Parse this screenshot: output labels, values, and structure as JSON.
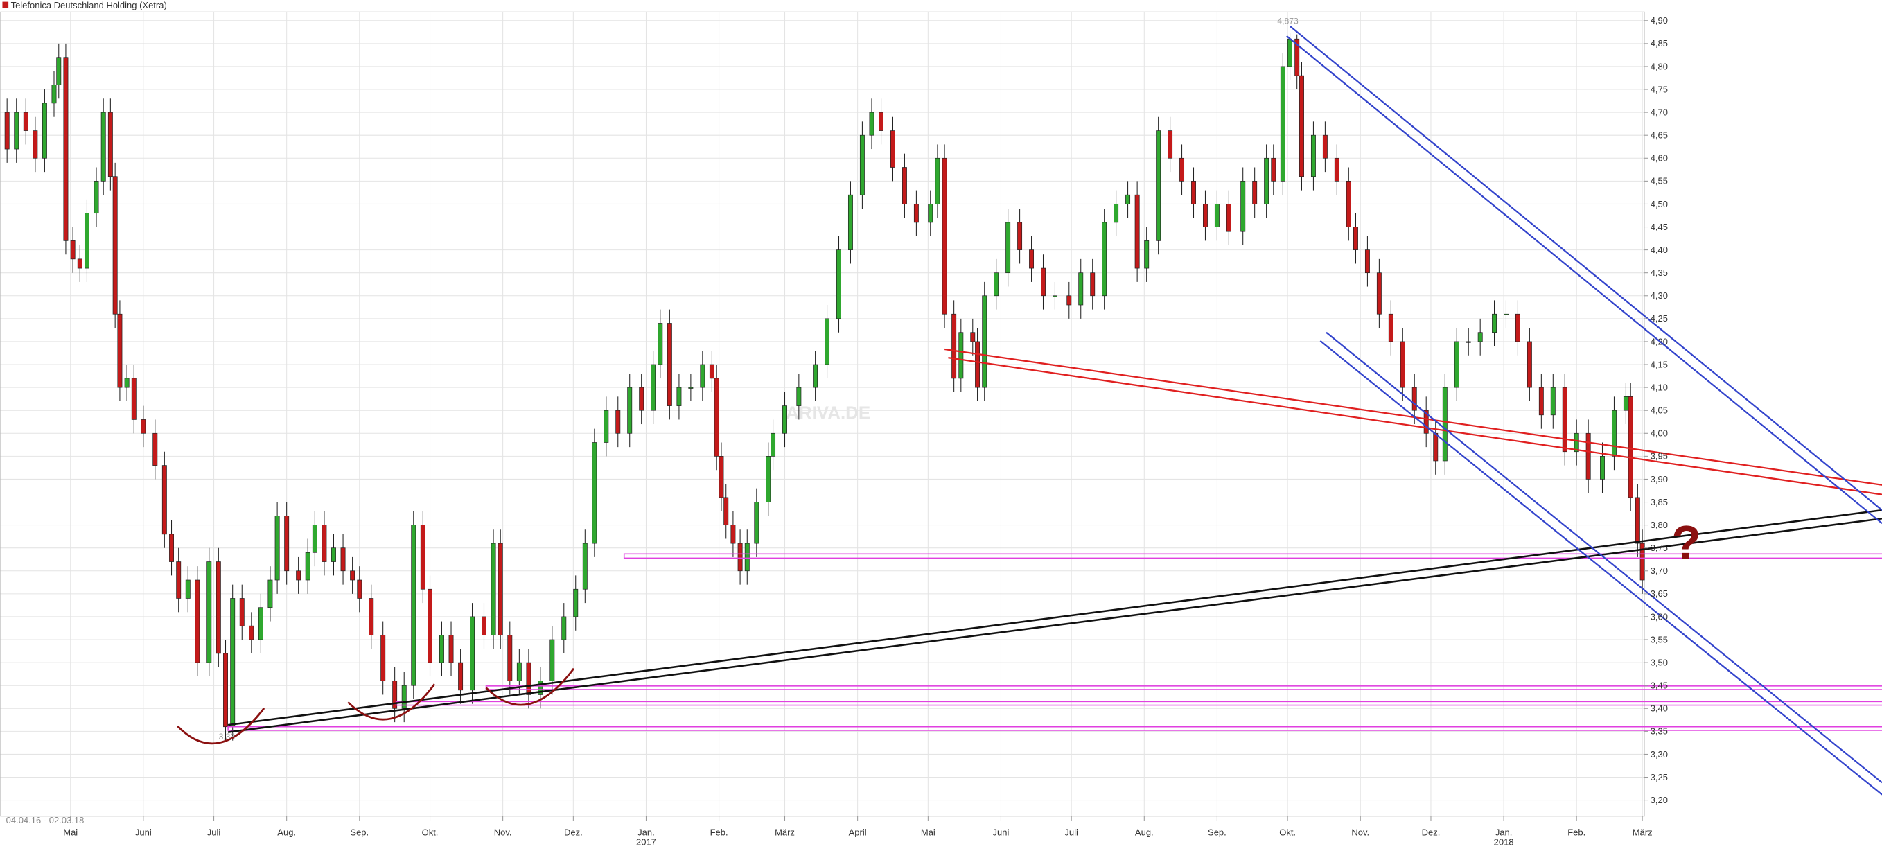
{
  "chart_data": {
    "type": "candlestick",
    "title": "Telefonica Deutschland Holding (Xetra)",
    "date_range": "04.04.16 - 02.03.18",
    "watermark": "ARIVA.DE",
    "annotations": [
      "4,873",
      "3,33",
      "?"
    ],
    "up_color": "#2fa82f",
    "down_color": "#c41a1a",
    "grid": true,
    "x": [
      0,
      4,
      8,
      12,
      16,
      20,
      22,
      25,
      28,
      31,
      34,
      38,
      41,
      44,
      46,
      48,
      51,
      54,
      58,
      63,
      67,
      70,
      73,
      77,
      81,
      86,
      90,
      93,
      96,
      100,
      104,
      108,
      112,
      115,
      119,
      124,
      128,
      131,
      135,
      139,
      143,
      147,
      150,
      155,
      160,
      165,
      169,
      173,
      177,
      180,
      185,
      189,
      193,
      198,
      203,
      207,
      210,
      214,
      218,
      222,
      227,
      232,
      237,
      242,
      246,
      250,
      255,
      260,
      265,
      270,
      275,
      278,
      282,
      286,
      291,
      296,
      300,
      302,
      304,
      306,
      309,
      312,
      315,
      319,
      324,
      326,
      331,
      337,
      344,
      349,
      354,
      359,
      364,
      368,
      372,
      377,
      382,
      387,
      393,
      396,
      399,
      403,
      406,
      411,
      413,
      416,
      421,
      426,
      431,
      436,
      441,
      446,
      452,
      457,
      462,
      467,
      472,
      477,
      481,
      485,
      490,
      495,
      500,
      505,
      510,
      515,
      520,
      526,
      531,
      536,
      539,
      543,
      546,
      549,
      551,
      556,
      561,
      566,
      571,
      574,
      579,
      584,
      589,
      594,
      599,
      604,
      608,
      612,
      617,
      622,
      627,
      633,
      638,
      643,
      648,
      653,
      658,
      663,
      668,
      673,
      679,
      684,
      689,
      691,
      694,
      696
    ],
    "open": [
      4.7,
      4.62,
      4.7,
      4.66,
      4.6,
      4.72,
      4.76,
      4.82,
      4.42,
      4.38,
      4.36,
      4.48,
      4.55,
      4.7,
      4.56,
      4.26,
      4.1,
      4.12,
      4.03,
      4.0,
      3.93,
      3.78,
      3.72,
      3.64,
      3.68,
      3.5,
      3.72,
      3.52,
      3.36,
      3.64,
      3.58,
      3.55,
      3.62,
      3.68,
      3.82,
      3.7,
      3.68,
      3.74,
      3.8,
      3.72,
      3.75,
      3.7,
      3.68,
      3.64,
      3.56,
      3.46,
      3.4,
      3.45,
      3.8,
      3.66,
      3.5,
      3.56,
      3.5,
      3.44,
      3.6,
      3.56,
      3.76,
      3.56,
      3.46,
      3.5,
      3.43,
      3.46,
      3.55,
      3.6,
      3.66,
      3.76,
      3.98,
      4.05,
      4.0,
      4.1,
      4.05,
      4.15,
      4.24,
      4.06,
      4.1,
      4.1,
      4.15,
      4.12,
      3.95,
      3.86,
      3.8,
      3.76,
      3.7,
      3.76,
      3.85,
      3.95,
      4.0,
      4.06,
      4.1,
      4.15,
      4.25,
      4.4,
      4.52,
      4.65,
      4.7,
      4.66,
      4.58,
      4.5,
      4.46,
      4.5,
      4.6,
      4.26,
      4.12,
      4.22,
      4.2,
      4.1,
      4.3,
      4.35,
      4.46,
      4.4,
      4.36,
      4.3,
      4.3,
      4.28,
      4.35,
      4.3,
      4.46,
      4.5,
      4.52,
      4.36,
      4.42,
      4.66,
      4.6,
      4.55,
      4.5,
      4.45,
      4.5,
      4.44,
      4.55,
      4.5,
      4.6,
      4.55,
      4.8,
      4.86,
      4.78,
      4.56,
      4.65,
      4.6,
      4.55,
      4.45,
      4.4,
      4.35,
      4.26,
      4.2,
      4.1,
      4.05,
      4.0,
      3.94,
      4.1,
      4.2,
      4.2,
      4.22,
      4.26,
      4.26,
      4.2,
      4.1,
      4.04,
      4.1,
      3.96,
      4.0,
      3.9,
      3.95,
      4.05,
      4.08,
      3.86,
      3.76
    ],
    "high": [
      4.73,
      4.73,
      4.73,
      4.69,
      4.75,
      4.79,
      4.85,
      4.85,
      4.45,
      4.41,
      4.51,
      4.58,
      4.73,
      4.73,
      4.59,
      4.29,
      4.15,
      4.15,
      4.06,
      4.03,
      3.96,
      3.81,
      3.75,
      3.71,
      3.71,
      3.75,
      3.75,
      3.55,
      3.67,
      3.67,
      3.61,
      3.65,
      3.71,
      3.85,
      3.85,
      3.73,
      3.77,
      3.83,
      3.83,
      3.78,
      3.78,
      3.73,
      3.71,
      3.67,
      3.59,
      3.49,
      3.48,
      3.83,
      3.83,
      3.69,
      3.59,
      3.59,
      3.53,
      3.63,
      3.63,
      3.79,
      3.79,
      3.59,
      3.53,
      3.53,
      3.49,
      3.58,
      3.63,
      3.69,
      3.79,
      4.01,
      4.08,
      4.08,
      4.13,
      4.13,
      4.18,
      4.27,
      4.27,
      4.13,
      4.13,
      4.18,
      4.18,
      4.15,
      3.98,
      3.89,
      3.83,
      3.79,
      3.79,
      3.88,
      3.98,
      4.03,
      4.09,
      4.13,
      4.18,
      4.28,
      4.43,
      4.55,
      4.68,
      4.73,
      4.73,
      4.69,
      4.61,
      4.53,
      4.53,
      4.63,
      4.63,
      4.29,
      4.25,
      4.25,
      4.23,
      4.33,
      4.38,
      4.49,
      4.49,
      4.43,
      4.39,
      4.33,
      4.33,
      4.38,
      4.38,
      4.49,
      4.53,
      4.55,
      4.55,
      4.45,
      4.69,
      4.69,
      4.63,
      4.58,
      4.53,
      4.53,
      4.53,
      4.58,
      4.58,
      4.63,
      4.63,
      4.83,
      4.873,
      4.87,
      4.81,
      4.68,
      4.68,
      4.63,
      4.58,
      4.48,
      4.43,
      4.38,
      4.29,
      4.23,
      4.13,
      4.08,
      4.03,
      4.13,
      4.23,
      4.23,
      4.25,
      4.29,
      4.29,
      4.29,
      4.23,
      4.13,
      4.13,
      4.13,
      4.03,
      4.03,
      3.98,
      4.08,
      4.11,
      4.11,
      3.89,
      3.79
    ],
    "low": [
      4.59,
      4.59,
      4.63,
      4.57,
      4.57,
      4.69,
      4.73,
      4.39,
      4.35,
      4.33,
      4.33,
      4.45,
      4.52,
      4.53,
      4.23,
      4.07,
      4.07,
      4.0,
      3.97,
      3.9,
      3.75,
      3.69,
      3.61,
      3.61,
      3.47,
      3.47,
      3.49,
      3.33,
      3.33,
      3.55,
      3.52,
      3.52,
      3.59,
      3.65,
      3.67,
      3.65,
      3.65,
      3.71,
      3.69,
      3.69,
      3.67,
      3.65,
      3.61,
      3.53,
      3.43,
      3.37,
      3.37,
      3.42,
      3.63,
      3.47,
      3.47,
      3.47,
      3.41,
      3.41,
      3.53,
      3.53,
      3.53,
      3.43,
      3.43,
      3.4,
      3.4,
      3.43,
      3.52,
      3.57,
      3.63,
      3.73,
      3.95,
      3.97,
      3.97,
      4.02,
      4.02,
      4.12,
      4.03,
      4.03,
      4.07,
      4.07,
      4.09,
      3.92,
      3.83,
      3.77,
      3.73,
      3.67,
      3.67,
      3.73,
      3.82,
      3.92,
      3.97,
      4.03,
      4.07,
      4.12,
      4.22,
      4.37,
      4.49,
      4.62,
      4.63,
      4.55,
      4.47,
      4.43,
      4.43,
      4.47,
      4.23,
      4.09,
      4.09,
      4.17,
      4.07,
      4.07,
      4.27,
      4.32,
      4.37,
      4.33,
      4.27,
      4.27,
      4.25,
      4.25,
      4.27,
      4.27,
      4.43,
      4.47,
      4.33,
      4.33,
      4.39,
      4.57,
      4.52,
      4.47,
      4.42,
      4.42,
      4.41,
      4.41,
      4.47,
      4.47,
      4.52,
      4.52,
      4.77,
      4.75,
      4.53,
      4.53,
      4.57,
      4.52,
      4.42,
      4.37,
      4.32,
      4.23,
      4.17,
      4.07,
      4.02,
      3.97,
      3.91,
      3.91,
      4.07,
      4.17,
      4.17,
      4.19,
      4.23,
      4.17,
      4.07,
      4.01,
      4.01,
      3.93,
      3.93,
      3.87,
      3.87,
      3.92,
      4.02,
      3.83,
      3.73,
      3.65
    ],
    "close": [
      4.62,
      4.7,
      4.66,
      4.6,
      4.72,
      4.76,
      4.82,
      4.42,
      4.38,
      4.36,
      4.48,
      4.55,
      4.7,
      4.56,
      4.26,
      4.1,
      4.12,
      4.03,
      4.0,
      3.93,
      3.78,
      3.72,
      3.64,
      3.68,
      3.5,
      3.72,
      3.52,
      3.36,
      3.64,
      3.58,
      3.55,
      3.62,
      3.68,
      3.82,
      3.7,
      3.68,
      3.74,
      3.8,
      3.72,
      3.75,
      3.7,
      3.68,
      3.64,
      3.56,
      3.46,
      3.4,
      3.45,
      3.8,
      3.66,
      3.5,
      3.56,
      3.5,
      3.44,
      3.6,
      3.56,
      3.76,
      3.56,
      3.46,
      3.5,
      3.43,
      3.46,
      3.55,
      3.6,
      3.66,
      3.76,
      3.98,
      4.05,
      4.0,
      4.1,
      4.05,
      4.15,
      4.24,
      4.06,
      4.1,
      4.1,
      4.15,
      4.12,
      3.95,
      3.86,
      3.8,
      3.76,
      3.7,
      3.76,
      3.85,
      3.95,
      4.0,
      4.06,
      4.1,
      4.15,
      4.25,
      4.4,
      4.52,
      4.65,
      4.7,
      4.66,
      4.58,
      4.5,
      4.46,
      4.5,
      4.6,
      4.26,
      4.12,
      4.22,
      4.2,
      4.1,
      4.3,
      4.35,
      4.46,
      4.4,
      4.36,
      4.3,
      4.3,
      4.28,
      4.35,
      4.3,
      4.46,
      4.5,
      4.52,
      4.36,
      4.42,
      4.66,
      4.6,
      4.55,
      4.5,
      4.45,
      4.5,
      4.44,
      4.55,
      4.5,
      4.6,
      4.55,
      4.8,
      4.86,
      4.78,
      4.56,
      4.65,
      4.6,
      4.55,
      4.45,
      4.4,
      4.35,
      4.26,
      4.2,
      4.1,
      4.05,
      4.0,
      3.94,
      4.1,
      4.2,
      4.2,
      4.22,
      4.26,
      4.26,
      4.2,
      4.1,
      4.04,
      4.1,
      3.96,
      4.0,
      3.9,
      3.95,
      4.05,
      4.08,
      3.86,
      3.76,
      3.68
    ],
    "xlim": [
      -3,
      798
    ],
    "ylim": [
      3.165,
      4.945
    ],
    "xticks": [
      {
        "value": 27,
        "label": "Mai"
      },
      {
        "value": 58,
        "label": "Juni"
      },
      {
        "value": 88,
        "label": "Juli"
      },
      {
        "value": 119,
        "label": "Aug."
      },
      {
        "value": 150,
        "label": "Sep."
      },
      {
        "value": 180,
        "label": "Okt."
      },
      {
        "value": 211,
        "label": "Nov."
      },
      {
        "value": 241,
        "label": "Dez."
      },
      {
        "value": 272,
        "label": "Jan."
      },
      {
        "value": 303,
        "label": "Feb."
      },
      {
        "value": 331,
        "label": "März"
      },
      {
        "value": 362,
        "label": "April"
      },
      {
        "value": 392,
        "label": "Mai"
      },
      {
        "value": 423,
        "label": "Juni"
      },
      {
        "value": 453,
        "label": "Juli"
      },
      {
        "value": 484,
        "label": "Aug."
      },
      {
        "value": 515,
        "label": "Sep."
      },
      {
        "value": 545,
        "label": "Okt."
      },
      {
        "value": 576,
        "label": "Nov."
      },
      {
        "value": 606,
        "label": "Dez."
      },
      {
        "value": 637,
        "label": "Jan."
      },
      {
        "value": 668,
        "label": "Feb."
      },
      {
        "value": 696,
        "label": "März"
      }
    ],
    "year_ticks": [
      {
        "value": 272,
        "label": "2017"
      },
      {
        "value": 637,
        "label": "2018"
      }
    ],
    "yticks": [
      {
        "value": 3.2,
        "label": "3,20"
      },
      {
        "value": 3.25,
        "label": "3,25"
      },
      {
        "value": 3.3,
        "label": "3,30"
      },
      {
        "value": 3.35,
        "label": "3,35"
      },
      {
        "value": 3.4,
        "label": "3,40"
      },
      {
        "value": 3.45,
        "label": "3,45"
      },
      {
        "value": 3.5,
        "label": "3,50"
      },
      {
        "value": 3.55,
        "label": "3,55"
      },
      {
        "value": 3.6,
        "label": "3,60"
      },
      {
        "value": 3.65,
        "label": "3,65"
      },
      {
        "value": 3.7,
        "label": "3,70"
      },
      {
        "value": 3.75,
        "label": "3,75"
      },
      {
        "value": 3.8,
        "label": "3,80"
      },
      {
        "value": 3.85,
        "label": "3,85"
      },
      {
        "value": 3.9,
        "label": "3,90"
      },
      {
        "value": 3.95,
        "label": "3,95"
      },
      {
        "value": 4.0,
        "label": "4,00"
      },
      {
        "value": 4.05,
        "label": "4,05"
      },
      {
        "value": 4.1,
        "label": "4,10"
      },
      {
        "value": 4.15,
        "label": "4,15"
      },
      {
        "value": 4.2,
        "label": "4,20"
      },
      {
        "value": 4.25,
        "label": "4,25"
      },
      {
        "value": 4.3,
        "label": "4,30"
      },
      {
        "value": 4.35,
        "label": "4,35"
      },
      {
        "value": 4.4,
        "label": "4,40"
      },
      {
        "value": 4.45,
        "label": "4,45"
      },
      {
        "value": 4.5,
        "label": "4,50"
      },
      {
        "value": 4.55,
        "label": "4,55"
      },
      {
        "value": 4.6,
        "label": "4,60"
      },
      {
        "value": 4.65,
        "label": "4,65"
      },
      {
        "value": 4.7,
        "label": "4,70"
      },
      {
        "value": 4.75,
        "label": "4,75"
      },
      {
        "value": 4.8,
        "label": "4,80"
      },
      {
        "value": 4.85,
        "label": "4,85"
      },
      {
        "value": 4.9,
        "label": "4,90"
      }
    ]
  }
}
